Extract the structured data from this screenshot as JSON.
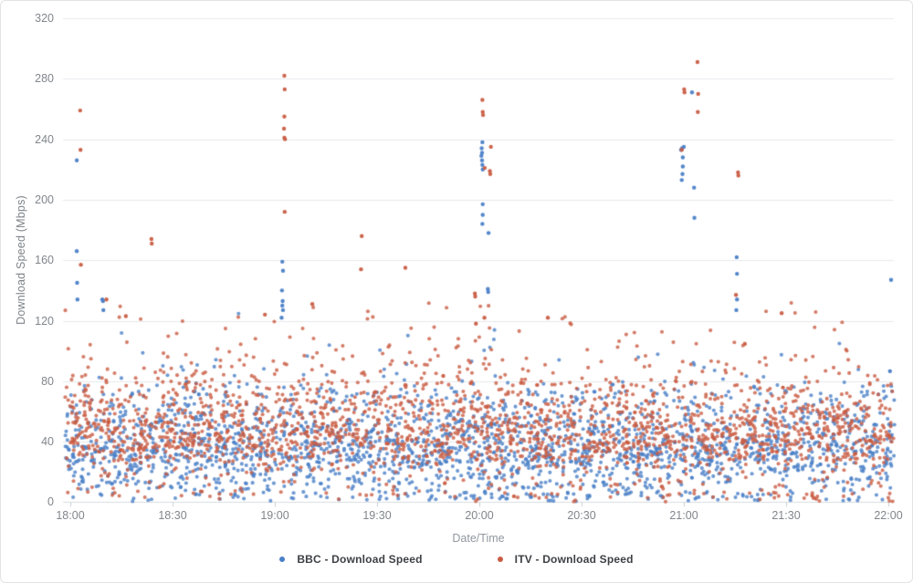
{
  "chart_data": {
    "type": "scatter",
    "title": "",
    "xlabel": "Date/Time",
    "ylabel": "Download Speed (Mbps)",
    "x_ticks": [
      "18:00",
      "18:30",
      "19:00",
      "19:30",
      "20:00",
      "20:30",
      "21:00",
      "21:30",
      "22:00"
    ],
    "x_tick_minutes": [
      0,
      30,
      60,
      90,
      120,
      150,
      180,
      210,
      240
    ],
    "y_ticks": [
      0,
      40,
      80,
      120,
      160,
      200,
      240,
      280,
      320
    ],
    "ylim": [
      0,
      320
    ],
    "xlim_minutes": [
      -1.5,
      241.8
    ],
    "grid": true,
    "legend_position": "bottom",
    "grid_color": "#e7eaed",
    "axis_line_color": "#d9dde0",
    "tick_mark_color": "#c9ced3",
    "background_seed": 1337,
    "series": [
      {
        "name": "BBC - Download Speed",
        "color": "#4a7fc7",
        "outliers_minute_value": [
          [
            1.9,
            226
          ],
          [
            1.9,
            166
          ],
          [
            2.0,
            145
          ],
          [
            2.1,
            134
          ],
          [
            9.4,
            134
          ],
          [
            9.6,
            133
          ],
          [
            9.7,
            127
          ],
          [
            62.2,
            159
          ],
          [
            62.4,
            153
          ],
          [
            62.1,
            140
          ],
          [
            62.3,
            133
          ],
          [
            62.2,
            130
          ],
          [
            62.4,
            127
          ],
          [
            62.0,
            122
          ],
          [
            120.9,
            238
          ],
          [
            120.7,
            234
          ],
          [
            120.8,
            231
          ],
          [
            120.6,
            229
          ],
          [
            120.8,
            226
          ],
          [
            120.9,
            223
          ],
          [
            121.0,
            220
          ],
          [
            121.0,
            197
          ],
          [
            121.0,
            190
          ],
          [
            120.9,
            184
          ],
          [
            122.7,
            178
          ],
          [
            122.5,
            141
          ],
          [
            122.6,
            139
          ],
          [
            182.4,
            271
          ],
          [
            180.0,
            235
          ],
          [
            179.5,
            234
          ],
          [
            179.2,
            233
          ],
          [
            179.7,
            228
          ],
          [
            179.7,
            222
          ],
          [
            179.6,
            217
          ],
          [
            179.4,
            213
          ],
          [
            183.0,
            208
          ],
          [
            183.1,
            188
          ],
          [
            195.5,
            162
          ],
          [
            195.6,
            151
          ],
          [
            195.6,
            134
          ],
          [
            195.4,
            127
          ],
          [
            240.8,
            147
          ]
        ],
        "background": {
          "count": 2300,
          "mixture": [
            {
              "w": 0.42,
              "type": "gauss",
              "mean": 38,
              "sd": 11,
              "min": 5,
              "max": 73
            },
            {
              "w": 0.28,
              "type": "gauss",
              "mean": 25,
              "sd": 9,
              "min": 2,
              "max": 52
            },
            {
              "w": 0.16,
              "type": "uniform",
              "min": 48,
              "max": 74
            },
            {
              "w": 0.04,
              "type": "tail",
              "base": 74,
              "scale": 15,
              "max": 130
            },
            {
              "w": 0.08,
              "type": "uniform",
              "min": 1,
              "max": 14
            },
            {
              "w": 0.02,
              "type": "uniform",
              "min": 0,
              "max": 6
            }
          ]
        }
      },
      {
        "name": "ITV - Download Speed",
        "color": "#c95d43",
        "outliers_minute_value": [
          [
            2.9,
            259
          ],
          [
            3.0,
            233
          ],
          [
            3.1,
            157
          ],
          [
            10.6,
            134
          ],
          [
            16.3,
            123
          ],
          [
            23.8,
            174
          ],
          [
            23.9,
            171
          ],
          [
            57.1,
            124
          ],
          [
            62.8,
            282
          ],
          [
            62.9,
            273
          ],
          [
            62.8,
            255
          ],
          [
            62.7,
            247
          ],
          [
            62.8,
            241
          ],
          [
            63.0,
            240
          ],
          [
            62.9,
            192
          ],
          [
            71.0,
            131
          ],
          [
            85.5,
            176
          ],
          [
            85.3,
            154
          ],
          [
            98.3,
            155
          ],
          [
            118.7,
            138
          ],
          [
            118.8,
            136
          ],
          [
            119.0,
            118
          ],
          [
            120.9,
            266
          ],
          [
            121.0,
            258
          ],
          [
            121.1,
            256
          ],
          [
            123.4,
            235
          ],
          [
            121.6,
            221
          ],
          [
            123.1,
            219
          ],
          [
            123.2,
            217
          ],
          [
            121.5,
            122
          ],
          [
            140.1,
            122
          ],
          [
            179.4,
            233
          ],
          [
            180.1,
            273
          ],
          [
            180.2,
            271
          ],
          [
            184.0,
            291
          ],
          [
            184.2,
            270
          ],
          [
            184.1,
            258
          ],
          [
            195.9,
            218
          ],
          [
            196.0,
            216
          ],
          [
            195.3,
            137
          ],
          [
            208.7,
            125
          ]
        ],
        "background": {
          "count": 2300,
          "mixture": [
            {
              "w": 0.48,
              "type": "gauss",
              "mean": 47,
              "sd": 11,
              "min": 14,
              "max": 77
            },
            {
              "w": 0.22,
              "type": "gauss",
              "mean": 34,
              "sd": 10,
              "min": 7,
              "max": 60
            },
            {
              "w": 0.13,
              "type": "uniform",
              "min": 58,
              "max": 80
            },
            {
              "w": 0.11,
              "type": "tail",
              "base": 77,
              "scale": 16,
              "max": 133
            },
            {
              "w": 0.04,
              "type": "uniform",
              "min": 2,
              "max": 16
            },
            {
              "w": 0.02,
              "type": "uniform",
              "min": 0,
              "max": 7
            }
          ]
        }
      }
    ]
  }
}
